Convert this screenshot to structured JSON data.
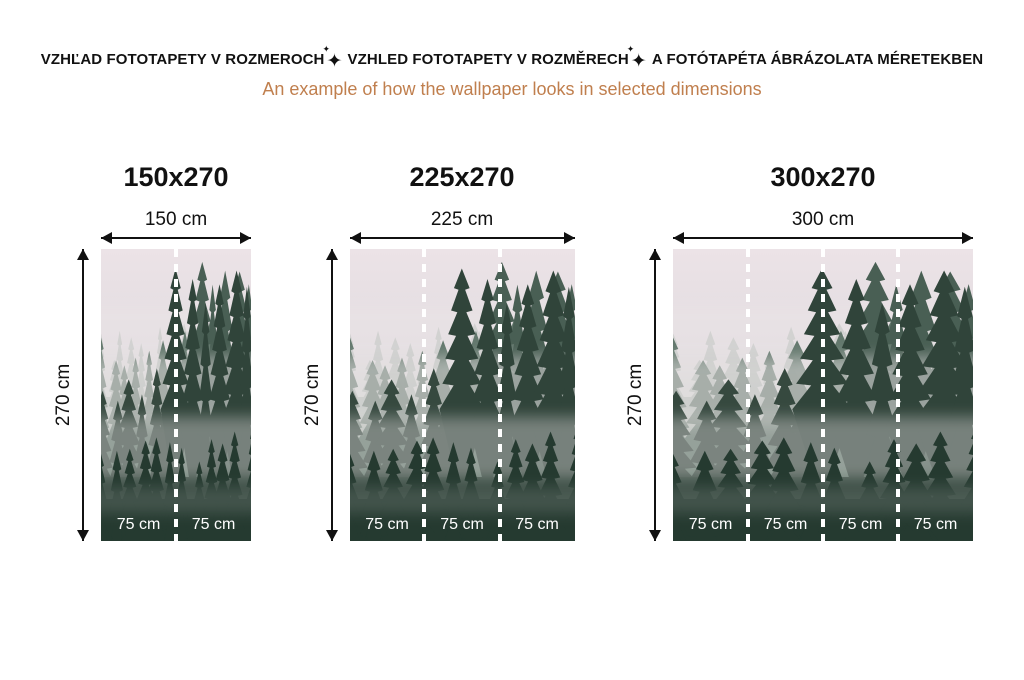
{
  "header": {
    "title_segments": [
      "VZHĽAD FOTOTAPETY V ROZMEROCH",
      "VZHLED FOTOTAPETY V ROZMĚRECH",
      "A FOTÓTAPÉTA ÁBRÁZOLATA MÉRETEKBEN"
    ],
    "separator_glyph": "✦",
    "subtitle": "An example of how the wallpaper looks in selected dimensions",
    "subtitle_color": "#c07f4e",
    "title_color": "#111111"
  },
  "photo": {
    "description": "misty-foggy-evergreen-forest-wallpaper",
    "divider_color": "#ffffff",
    "label_color": "#ffffff"
  },
  "panels": [
    {
      "title": "150x270",
      "width_label": "150 cm",
      "height_label": "270 cm",
      "segments": [
        "75 cm",
        "75 cm"
      ]
    },
    {
      "title": "225x270",
      "width_label": "225 cm",
      "height_label": "270 cm",
      "segments": [
        "75 cm",
        "75 cm",
        "75 cm"
      ]
    },
    {
      "title": "300x270",
      "width_label": "300 cm",
      "height_label": "270 cm",
      "segments": [
        "75 cm",
        "75 cm",
        "75 cm",
        "75 cm"
      ]
    }
  ]
}
